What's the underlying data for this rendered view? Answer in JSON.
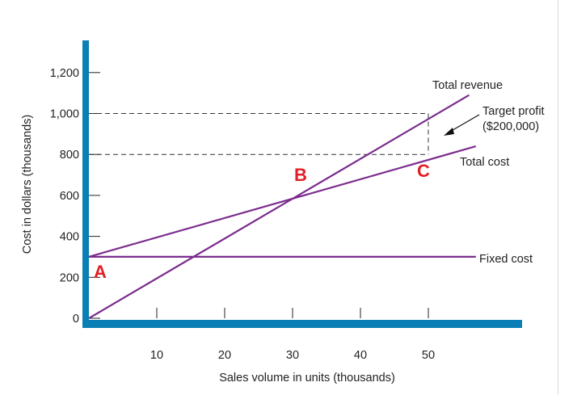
{
  "chart_data": {
    "type": "line",
    "xlabel": "Sales volume in units (thousands)",
    "ylabel": "Cost in dollars (thousands)",
    "xlim": [
      0,
      62
    ],
    "ylim": [
      0,
      1200
    ],
    "x_ticks": [
      10,
      20,
      30,
      40,
      50
    ],
    "y_ticks": [
      0,
      200,
      400,
      600,
      800,
      1000,
      1200
    ],
    "y_tick_labels": [
      "0",
      "200",
      "400",
      "600",
      "800",
      "1,000",
      "1,200"
    ],
    "series": [
      {
        "name": "Total revenue",
        "x": [
          0,
          56
        ],
        "y": [
          0,
          1090
        ],
        "color": "#7b2d8e"
      },
      {
        "name": "Total cost",
        "x": [
          0,
          57
        ],
        "y": [
          300,
          840
        ],
        "color": "#7b2d8e"
      },
      {
        "name": "Fixed cost",
        "x": [
          0,
          57
        ],
        "y": [
          300,
          300
        ],
        "color": "#7b2d8e"
      }
    ],
    "reference_lines": [
      {
        "y": 1000,
        "x_end": 50,
        "style": "dashed"
      },
      {
        "y": 800,
        "x_end": 50,
        "style": "dashed"
      },
      {
        "x": 50,
        "y_range": [
          800,
          1000
        ],
        "style": "dashed"
      }
    ],
    "annotations": {
      "total_revenue": "Total revenue",
      "target_profit_line1": "Target profit",
      "target_profit_line2": "($200,000)",
      "total_cost": "Total cost",
      "fixed_cost": "Fixed cost"
    },
    "points": [
      {
        "label": "A",
        "x": 0,
        "y": 300
      },
      {
        "label": "B",
        "x": 30,
        "y": 600
      },
      {
        "label": "C",
        "x": 50,
        "y": 800
      }
    ],
    "colors": {
      "axis": "#0a7fb5",
      "line": "#7b2d8e",
      "point_label": "#e31e24"
    },
    "grid": false,
    "legend": "none"
  }
}
